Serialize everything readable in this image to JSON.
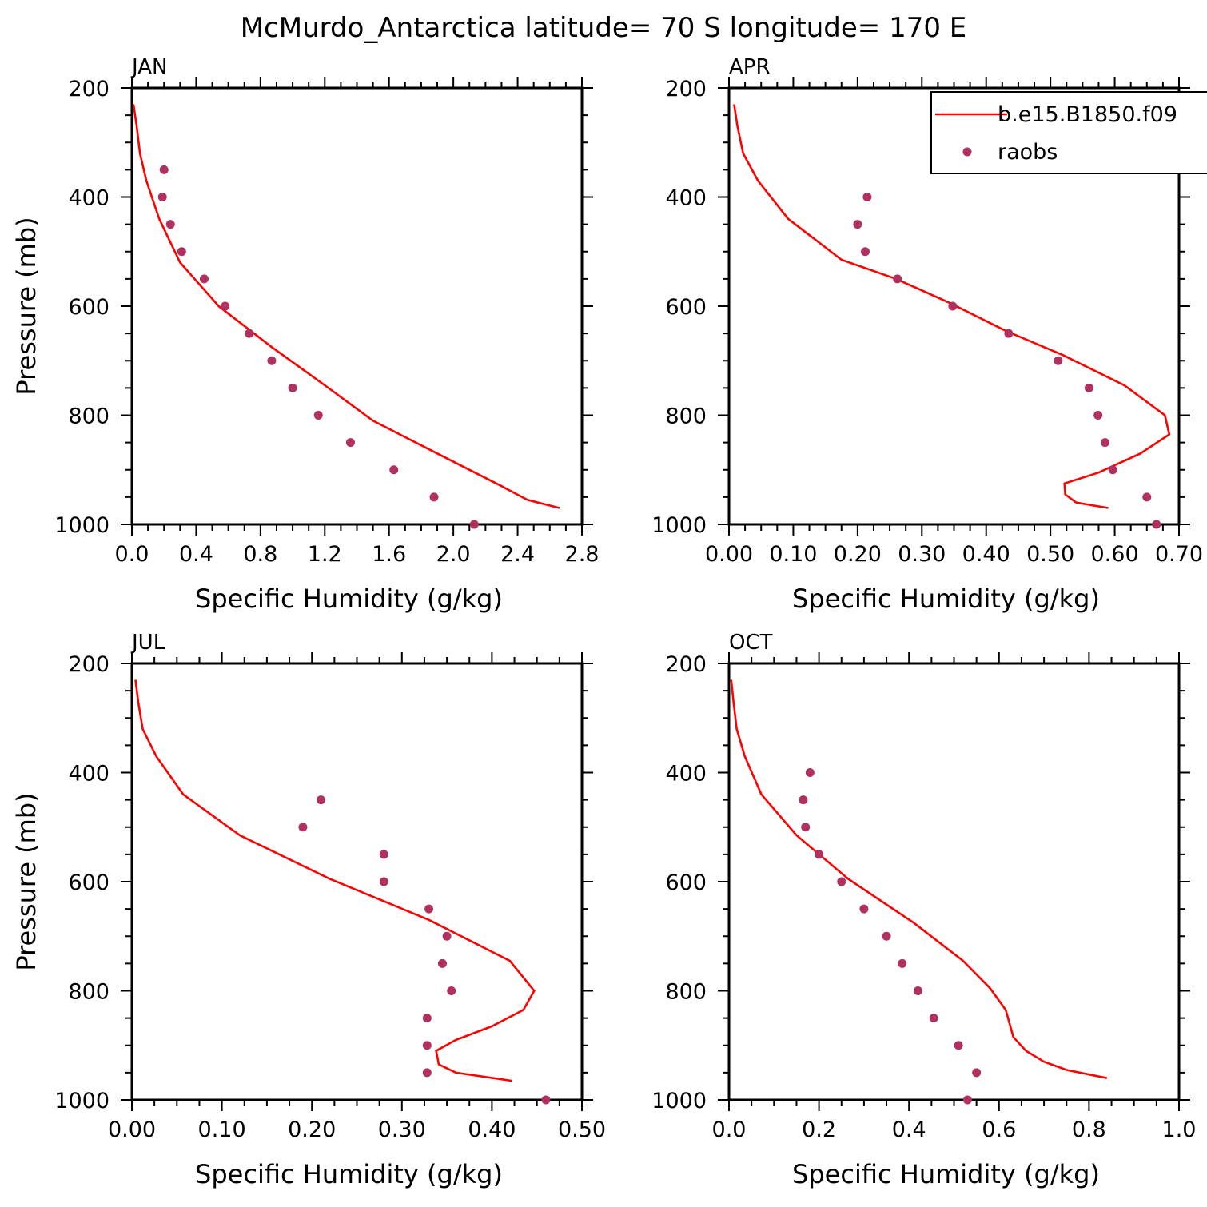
{
  "title": "McMurdo_Antarctica  latitude= 70 S longitude= 170 E",
  "colors": {
    "model_line": "#ff0000",
    "obs_points": "#b03060"
  },
  "legend": {
    "panel": 1,
    "entries": [
      {
        "label": "b.e15.B1850.f09",
        "style": "line"
      },
      {
        "label": "raobs",
        "style": "marker"
      }
    ]
  },
  "chart_data": [
    {
      "type": "line",
      "title": "JAN",
      "xlabel": "Specific Humidity (g/kg)",
      "ylabel": "Pressure (mb)",
      "xlim": [
        0,
        2.8
      ],
      "ylim": [
        1000,
        200
      ],
      "y_inverted": true,
      "xticks": [
        "0.0",
        "0.4",
        "0.8",
        "1.2",
        "1.6",
        "2.0",
        "2.4",
        "2.8"
      ],
      "yticks": [
        "200",
        "400",
        "600",
        "800",
        "1000"
      ],
      "series": [
        {
          "name": "b.e15.B1850.f09",
          "style": "line",
          "x": [
            0.01,
            0.03,
            0.05,
            0.09,
            0.17,
            0.3,
            0.54,
            0.87,
            1.2,
            1.5,
            1.9,
            2.3,
            2.46,
            2.66
          ],
          "y": [
            230,
            270,
            320,
            370,
            440,
            520,
            600,
            675,
            745,
            810,
            870,
            930,
            955,
            970
          ]
        },
        {
          "name": "raobs",
          "style": "marker",
          "x": [
            0.2,
            0.19,
            0.24,
            0.31,
            0.45,
            0.58,
            0.73,
            0.87,
            1.0,
            1.16,
            1.36,
            1.63,
            1.88,
            2.13
          ],
          "y": [
            350,
            400,
            450,
            500,
            550,
            600,
            650,
            700,
            750,
            800,
            850,
            900,
            950,
            1000
          ]
        }
      ]
    },
    {
      "type": "line",
      "title": "APR",
      "xlabel": "Specific Humidity (g/kg)",
      "ylabel": "",
      "xlim": [
        0,
        0.7
      ],
      "ylim": [
        1000,
        200
      ],
      "y_inverted": true,
      "xticks": [
        "0.00",
        "0.10",
        "0.20",
        "0.30",
        "0.40",
        "0.50",
        "0.60",
        "0.70"
      ],
      "yticks": [
        "200",
        "400",
        "600",
        "800",
        "1000"
      ],
      "series": [
        {
          "name": "b.e15.B1850.f09",
          "style": "line",
          "x": [
            0.008,
            0.013,
            0.022,
            0.045,
            0.092,
            0.175,
            0.26,
            0.345,
            0.43,
            0.52,
            0.615,
            0.678,
            0.685,
            0.64,
            0.575,
            0.522,
            0.523,
            0.54,
            0.59
          ],
          "y": [
            230,
            270,
            320,
            370,
            440,
            515,
            550,
            595,
            645,
            690,
            745,
            800,
            835,
            870,
            905,
            925,
            945,
            960,
            970
          ]
        },
        {
          "name": "raobs",
          "style": "marker",
          "x": [
            0.215,
            0.2,
            0.212,
            0.262,
            0.348,
            0.435,
            0.512,
            0.56,
            0.574,
            0.585,
            0.597,
            0.65,
            0.665
          ],
          "y": [
            400,
            450,
            500,
            550,
            600,
            650,
            700,
            750,
            800,
            850,
            900,
            950,
            1000
          ]
        }
      ]
    },
    {
      "type": "line",
      "title": "JUL",
      "xlabel": "Specific Humidity (g/kg)",
      "ylabel": "Pressure (mb)",
      "xlim": [
        0,
        0.5
      ],
      "ylim": [
        1000,
        200
      ],
      "y_inverted": true,
      "xticks": [
        "0.00",
        "0.10",
        "0.20",
        "0.30",
        "0.40",
        "0.50"
      ],
      "yticks": [
        "200",
        "400",
        "600",
        "800",
        "1000"
      ],
      "series": [
        {
          "name": "b.e15.B1850.f09",
          "style": "line",
          "x": [
            0.004,
            0.007,
            0.012,
            0.027,
            0.057,
            0.12,
            0.22,
            0.33,
            0.42,
            0.447,
            0.435,
            0.4,
            0.36,
            0.338,
            0.341,
            0.36,
            0.422
          ],
          "y": [
            230,
            270,
            320,
            370,
            440,
            515,
            595,
            670,
            745,
            800,
            835,
            865,
            890,
            910,
            935,
            950,
            965
          ]
        },
        {
          "name": "raobs",
          "style": "marker",
          "x": [
            0.21,
            0.19,
            0.28,
            0.28,
            0.33,
            0.35,
            0.345,
            0.355,
            0.328,
            0.328,
            0.328,
            0.46
          ],
          "y": [
            450,
            500,
            550,
            600,
            650,
            700,
            750,
            800,
            850,
            900,
            950,
            1000
          ]
        }
      ]
    },
    {
      "type": "line",
      "title": "OCT",
      "xlabel": "Specific Humidity (g/kg)",
      "ylabel": "",
      "xlim": [
        0,
        1.0
      ],
      "ylim": [
        1000,
        200
      ],
      "y_inverted": true,
      "xticks": [
        "0.0",
        "0.2",
        "0.4",
        "0.6",
        "0.8",
        "1.0"
      ],
      "yticks": [
        "200",
        "400",
        "600",
        "800",
        "1000"
      ],
      "series": [
        {
          "name": "b.e15.B1850.f09",
          "style": "line",
          "x": [
            0.005,
            0.01,
            0.017,
            0.035,
            0.072,
            0.15,
            0.265,
            0.41,
            0.52,
            0.58,
            0.615,
            0.632,
            0.66,
            0.7,
            0.75,
            0.84
          ],
          "y": [
            230,
            270,
            320,
            370,
            440,
            515,
            595,
            675,
            745,
            795,
            835,
            885,
            910,
            930,
            945,
            960
          ]
        },
        {
          "name": "raobs",
          "style": "marker",
          "x": [
            0.18,
            0.165,
            0.17,
            0.2,
            0.25,
            0.3,
            0.35,
            0.385,
            0.42,
            0.455,
            0.51,
            0.55,
            0.53
          ],
          "y": [
            400,
            450,
            500,
            550,
            600,
            650,
            700,
            750,
            800,
            850,
            900,
            950,
            1000
          ]
        }
      ]
    }
  ]
}
